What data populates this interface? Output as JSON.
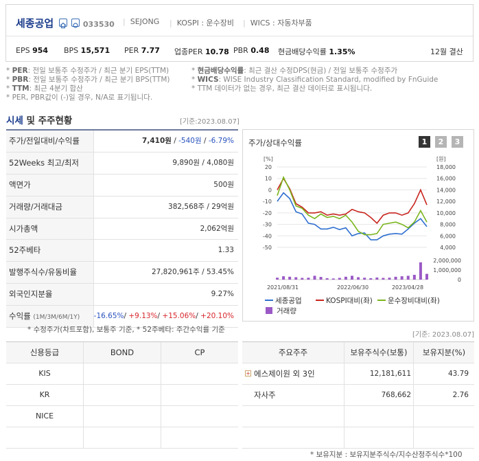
{
  "company": {
    "name": "세종공업",
    "code": "033530",
    "exchange_code": "SEJONG",
    "kospi": "KOSPI : 운수장비",
    "wics": "WICS : 자동차부품"
  },
  "stats": [
    {
      "label": "EPS",
      "value": "954"
    },
    {
      "label": "BPS",
      "value": "15,571"
    },
    {
      "label": "PER",
      "value": "7.77"
    },
    {
      "label": "업종PER",
      "value": "10.78"
    },
    {
      "label": "PBR",
      "value": "0.48"
    },
    {
      "label": "현금배당수익률",
      "value": "1.35%"
    }
  ],
  "fiscal": "12월 결산",
  "notes_left": [
    {
      "k": "PER",
      "t": ": 전일 보통주 수정주가 / 최근 분기 EPS(TTM)"
    },
    {
      "k": "PBR",
      "t": ": 전일 보통주 수정주가 / 최근 분기 BPS(TTM)"
    },
    {
      "k": "TTM",
      "t": ": 최근 4분기 합산"
    },
    {
      "k": "",
      "t": "* PER, PBR값이 (-)일 경우, N/A로 표기됩니다."
    }
  ],
  "notes_right": [
    {
      "k": "현금배당수익률",
      "t": ": 최근 결산 수정DPS(현금) / 전일 보통주 수정주가"
    },
    {
      "k": "WICS",
      "t": ": WISE Industry Classification Standard, modified by FnGuide"
    },
    {
      "k": "",
      "t": "* TTM 데이터가 없는 경우, 최근 결산 데이터로 표시됩니다."
    }
  ],
  "section": {
    "title_a": "시세",
    "title_b": " 및 주주현황",
    "basis": "[기준:2023.08.07]"
  },
  "market": [
    {
      "label": "주가/전일대비/수익률",
      "v1": "7,410원",
      "v2": "-540원",
      "v3": "-6.79%"
    },
    {
      "label": "52Weeks 최고/최저",
      "value": "9,890원 / 4,080원"
    },
    {
      "label": "액면가",
      "value": "500원"
    },
    {
      "label": "거래량/거래대금",
      "value": "382,568주 / 29억원"
    },
    {
      "label": "시가총액",
      "value": "2,062억원"
    },
    {
      "label": "52주베타",
      "value": "1.33"
    },
    {
      "label": "발행주식수/유동비율",
      "value": "27,820,961주 / 53.45%"
    },
    {
      "label": "외국인지분율",
      "value": "9.27%"
    },
    {
      "label": "수익률",
      "sub": "(1M/3M/6M/1Y)",
      "r1": "-16.65%",
      "r2": "+9.13%",
      "r3": "+15.06%",
      "r4": "+20.10%"
    }
  ],
  "market_footnote": "* 수정주가(차트포함), 보통주 기준, * 52주베타: 주간수익률 기준",
  "chart_title": "주가/상대수익률",
  "period_buttons": [
    "1",
    "2",
    "3"
  ],
  "chart_data": {
    "type": "line",
    "x_ticks": [
      "2021/08/31",
      "2022/06/30",
      "2023/04/28"
    ],
    "y_left_unit": "[%]",
    "y_left_ticks": [
      "20",
      "10",
      "0",
      "-10",
      "-20",
      "-30",
      "-40",
      "-50"
    ],
    "y_left_lim": [
      -50,
      20
    ],
    "y_right_unit": "[원]",
    "y_right_ticks": [
      "18,000",
      "16,000",
      "14,000",
      "12,000",
      "10,000",
      "8,000",
      "6,000",
      "4,000"
    ],
    "y_right_lim": [
      4000,
      18000
    ],
    "vol_ticks": [
      "2,000,000",
      "1,000,000",
      "0"
    ],
    "vol_lim": [
      0,
      2000000
    ],
    "series": [
      {
        "name": "세종공업",
        "color": "#2f6fd0",
        "axis": "right",
        "values": [
          12000,
          13500,
          12500,
          10200,
          9800,
          8200,
          8000,
          7200,
          7200,
          7500,
          7100,
          7400,
          6000,
          6400,
          6500,
          5300,
          5300,
          6000,
          6300,
          6400,
          6300,
          7200,
          8200,
          9000,
          7600
        ]
      },
      {
        "name": "KOSPI대비(좌)",
        "color": "#c8251e",
        "axis": "left",
        "values": [
          0,
          10,
          1,
          -12,
          -15,
          -20,
          -20,
          -19,
          -22,
          -21,
          -22,
          -21,
          -17,
          -19,
          -20,
          -24,
          -29,
          -22,
          -20,
          -20,
          -22,
          -20,
          -12,
          0,
          -13
        ]
      },
      {
        "name": "운수장비대비(좌)",
        "color": "#7ab51d",
        "axis": "left",
        "values": [
          -5,
          11,
          0,
          -14,
          -16,
          -22,
          -25,
          -21,
          -24,
          -23,
          -25,
          -22,
          -28,
          -36,
          -39,
          -39,
          -38,
          -30,
          -29,
          -28,
          -30,
          -33,
          -28,
          -18,
          -28
        ]
      }
    ],
    "volume": {
      "name": "거래량",
      "color": "#9b59c6",
      "values": [
        200000,
        350000,
        300000,
        250000,
        180000,
        200000,
        400000,
        280000,
        150000,
        120000,
        180000,
        300000,
        400000,
        250000,
        200000,
        150000,
        220000,
        180000,
        200000,
        300000,
        350000,
        400000,
        500000,
        1800000,
        600000
      ]
    }
  },
  "legend": [
    "세종공업",
    "KOSPI대비(좌)",
    "운수장비대비(좌)",
    "거래량"
  ],
  "basis2": "[기준: 2023.08.07]",
  "credit": {
    "headers": [
      "신용등급",
      "BOND",
      "CP"
    ],
    "rows": [
      "KIS",
      "KR",
      "NICE",
      ""
    ]
  },
  "holders": {
    "headers": [
      "주요주주",
      "보유주식수(보통)",
      "보유지분(%)"
    ],
    "rows": [
      {
        "name": "에스제이원 외 3인",
        "shares": "12,181,611",
        "pct": "43.79"
      },
      {
        "name": "자사주",
        "shares": "768,662",
        "pct": "2.76"
      },
      {
        "name": "",
        "shares": "",
        "pct": ""
      },
      {
        "name": "",
        "shares": "",
        "pct": ""
      }
    ]
  },
  "holders_footnote": "* 보유지분 : 보유지분주식수/지수산정주식수*100",
  "colors": {
    "navy": "#1a3c8c",
    "negative": "#2a52be",
    "positive": "#d8262d"
  }
}
